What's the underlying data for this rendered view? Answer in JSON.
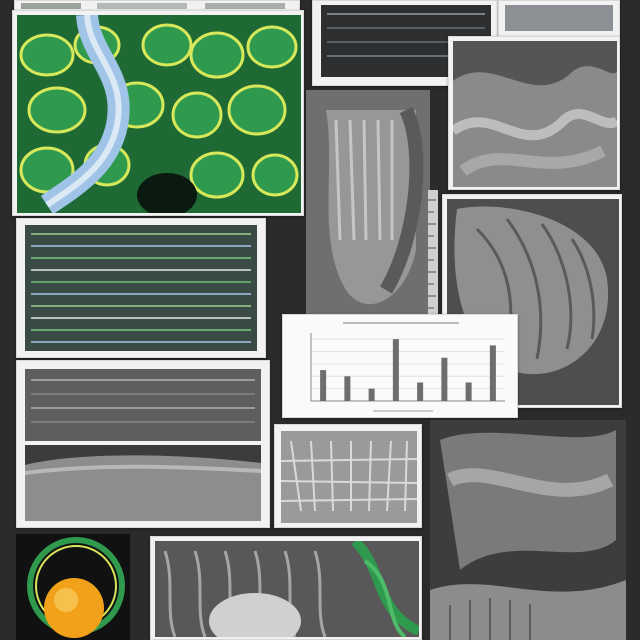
{
  "collage": {
    "background": "#2b2b2b",
    "frame_color": "#f2f2f2",
    "accent_green": "#2f9a4e",
    "accent_orange": "#f2a21a",
    "tissue_gray": "#7d7d7d"
  },
  "chart_data": {
    "type": "bar",
    "categories": [
      "",
      "",
      "",
      "",
      "",
      "",
      "",
      ""
    ],
    "values": [
      5,
      4,
      2,
      10,
      3,
      7,
      3,
      9
    ],
    "title": "",
    "xlabel": "",
    "ylabel": "",
    "ylim": [
      0,
      11
    ],
    "grid": true
  }
}
